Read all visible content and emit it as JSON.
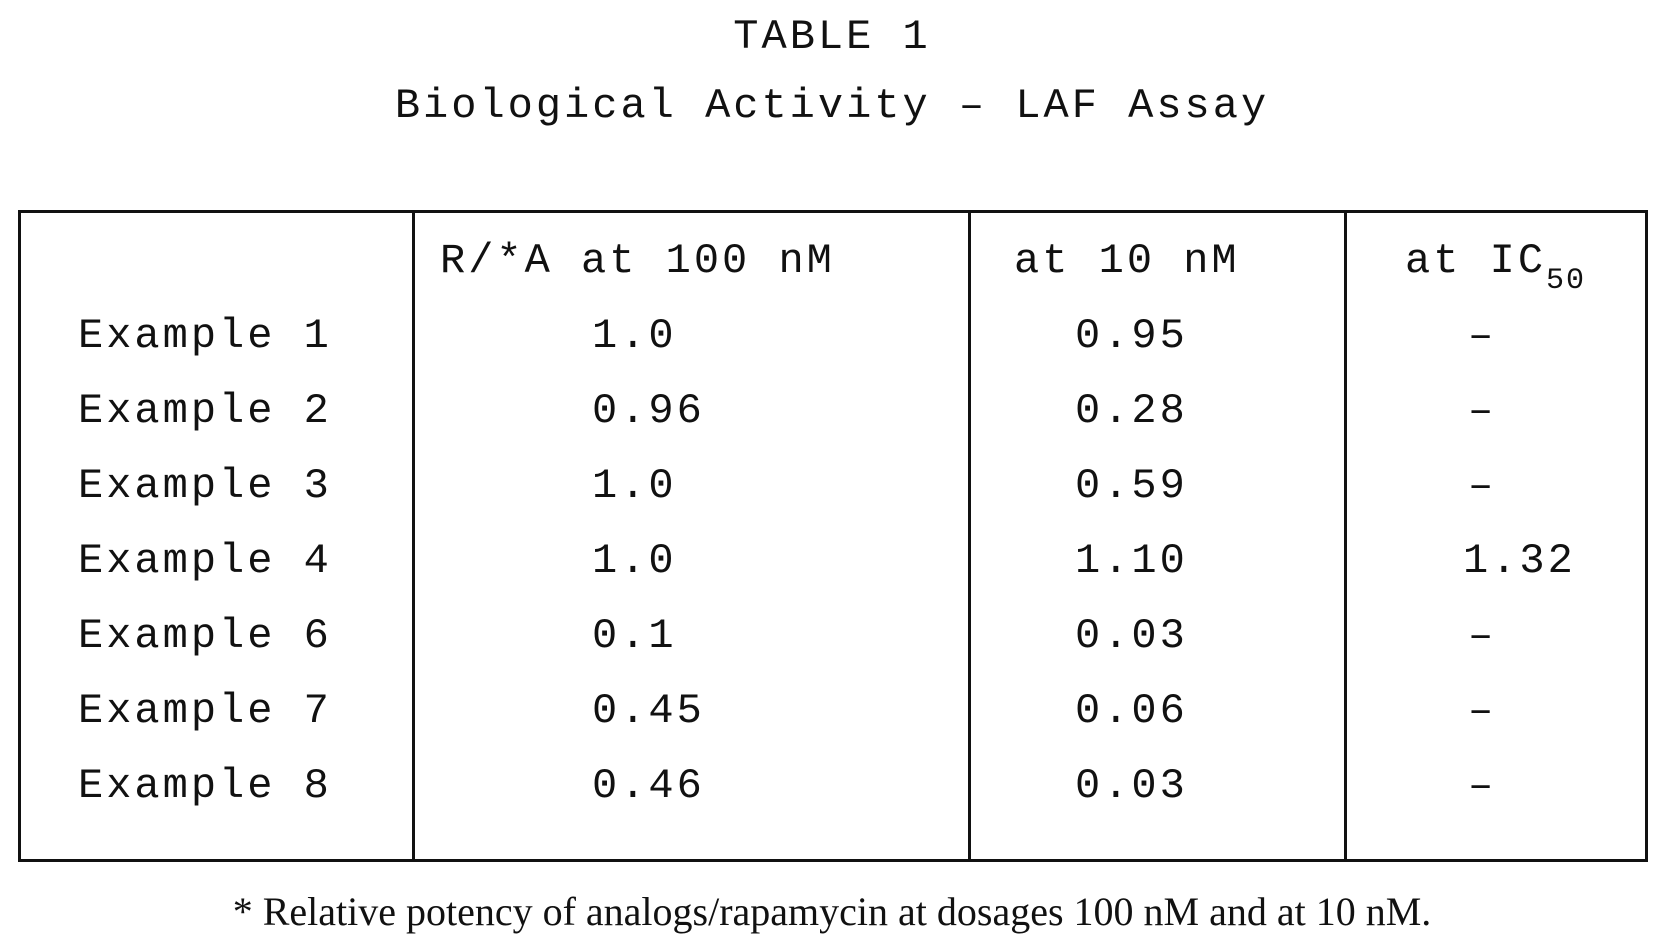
{
  "title": "TABLE 1",
  "subtitle": "Biological Activity – LAF Assay",
  "table": {
    "headers": {
      "col1": "R/*A at 100 nM",
      "col2": "at 10 nM",
      "col3_prefix": "at IC",
      "col3_sub": "50"
    },
    "rows": [
      {
        "label": "Example 1",
        "at_100nM": "1.0",
        "at_10nM": "0.95",
        "at_ic50": "–"
      },
      {
        "label": "Example 2",
        "at_100nM": "0.96",
        "at_10nM": "0.28",
        "at_ic50": "–"
      },
      {
        "label": "Example 3",
        "at_100nM": "1.0",
        "at_10nM": "0.59",
        "at_ic50": "–"
      },
      {
        "label": "Example 4",
        "at_100nM": "1.0",
        "at_10nM": "1.10",
        "at_ic50": "1.32"
      },
      {
        "label": "Example 6",
        "at_100nM": "0.1",
        "at_10nM": "0.03",
        "at_ic50": "–"
      },
      {
        "label": "Example 7",
        "at_100nM": "0.45",
        "at_10nM": "0.06",
        "at_ic50": "–"
      },
      {
        "label": "Example 8",
        "at_100nM": "0.46",
        "at_10nM": "0.03",
        "at_ic50": "–"
      }
    ]
  },
  "footnote": "* Relative potency of analogs/rapamycin at dosages 100 nM and at 10 nM."
}
